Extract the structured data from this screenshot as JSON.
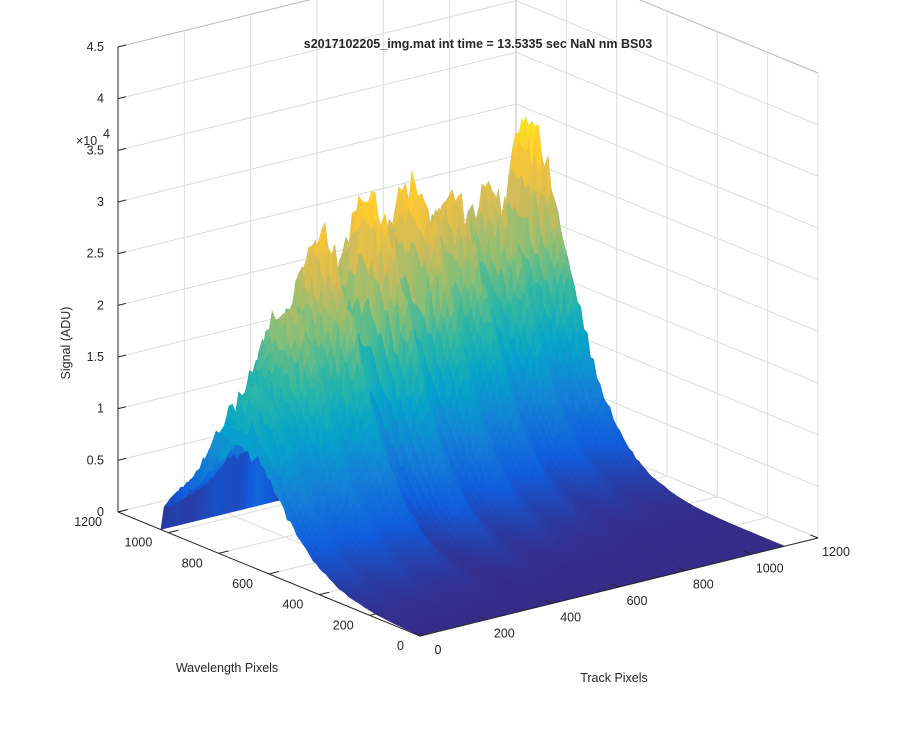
{
  "chart_data": {
    "type": "surface",
    "title": "s2017102205_img.mat int time = 13.5335 sec  NaN nm BS03",
    "xlabel": "Track Pixels",
    "ylabel": "Wavelength Pixels",
    "zlabel": "Signal (ADU)",
    "z_exponent_label": "×10",
    "z_exponent_power": "4",
    "xlim": [
      0,
      1200
    ],
    "ylim": [
      0,
      1200
    ],
    "zlim": [
      0,
      45000
    ],
    "x_ticks": [
      "0",
      "200",
      "400",
      "600",
      "800",
      "1000",
      "1200"
    ],
    "y_ticks": [
      "0",
      "200",
      "400",
      "600",
      "800",
      "1000",
      "1200"
    ],
    "z_ticks": [
      "0",
      "0.5",
      "1",
      "1.5",
      "2",
      "2.5",
      "3",
      "3.5",
      "4",
      "4.5"
    ],
    "grid": true,
    "colormap": "parula",
    "colormap_colors": [
      "#352a87",
      "#0f5cdd",
      "#1481d6",
      "#06a4ca",
      "#2eb7a4",
      "#87bf77",
      "#d1bb59",
      "#fec832",
      "#f9fb0e"
    ],
    "track_peaks": [
      {
        "track_center": 40,
        "peak_signal": 17000
      },
      {
        "track_center": 170,
        "peak_signal": 23000
      },
      {
        "track_center": 300,
        "peak_signal": 28500
      },
      {
        "track_center": 480,
        "peak_signal": 31500
      },
      {
        "track_center": 640,
        "peak_signal": 31000
      },
      {
        "track_center": 780,
        "peak_signal": 28000
      },
      {
        "track_center": 930,
        "peak_signal": 27000
      },
      {
        "track_center": 1070,
        "peak_signal": 32500
      }
    ]
  }
}
